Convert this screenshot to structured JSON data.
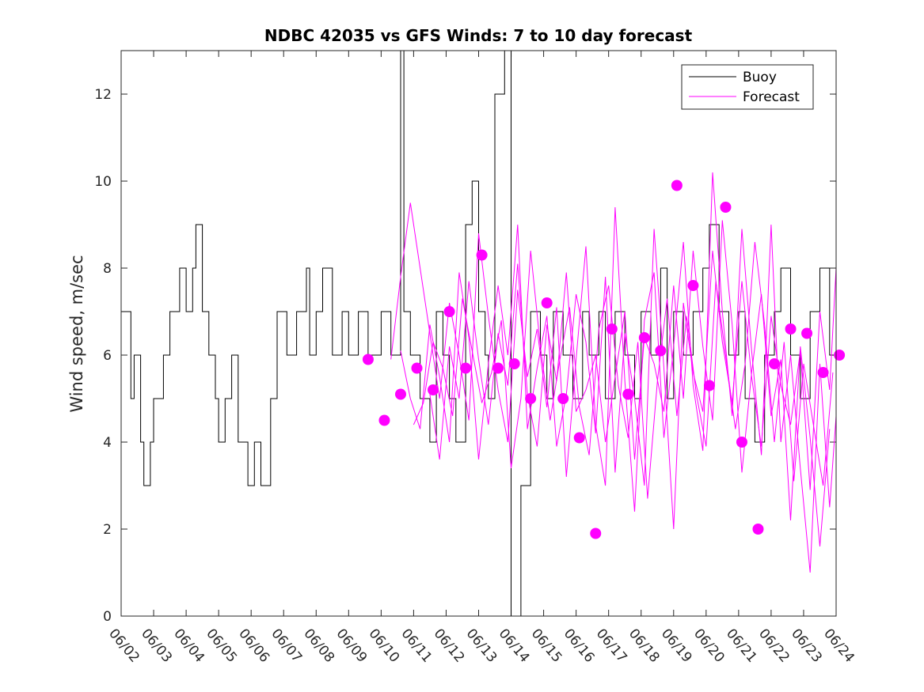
{
  "chart_data": {
    "type": "line",
    "title": "NDBC 42035 vs GFS Winds: 7 to 10 day forecast",
    "xlabel": "",
    "ylabel": "Wind speed, m/sec",
    "xlim": [
      "06/02",
      "06/24"
    ],
    "ylim": [
      0,
      13
    ],
    "x_tick_labels": [
      "06/02",
      "06/03",
      "06/04",
      "06/05",
      "06/06",
      "06/07",
      "06/08",
      "06/09",
      "06/10",
      "06/11",
      "06/12",
      "06/13",
      "06/14",
      "06/15",
      "06/16",
      "06/17",
      "06/18",
      "06/19",
      "06/20",
      "06/21",
      "06/22",
      "06/23",
      "06/24"
    ],
    "y_ticks": [
      0,
      2,
      4,
      6,
      8,
      10,
      12
    ],
    "legend": {
      "position": "top-right",
      "entries": [
        "Buoy",
        "Forecast"
      ]
    },
    "colors": {
      "buoy": "#000000",
      "forecast": "#ff00ff"
    },
    "series": [
      {
        "name": "Buoy",
        "style": "step",
        "x": [
          0.0,
          0.3,
          0.4,
          0.6,
          0.7,
          0.9,
          1.0,
          1.3,
          1.5,
          1.8,
          2.0,
          2.2,
          2.3,
          2.5,
          2.7,
          2.9,
          3.0,
          3.2,
          3.4,
          3.6,
          3.9,
          4.1,
          4.3,
          4.6,
          4.8,
          5.1,
          5.4,
          5.7,
          5.8,
          6.0,
          6.2,
          6.5,
          6.8,
          7.0,
          7.3,
          7.6,
          8.0,
          8.3,
          8.6,
          8.7,
          8.9,
          9.2,
          9.5,
          9.7,
          9.9,
          10.1,
          10.3,
          10.6,
          10.8,
          11.0,
          11.2,
          11.3,
          11.5,
          11.8,
          12.0,
          12.3,
          12.6,
          12.9,
          13.1,
          13.3,
          13.6,
          13.9,
          14.2,
          14.4,
          14.7,
          14.9,
          15.2,
          15.5,
          15.8,
          16.0,
          16.3,
          16.6,
          16.8,
          17.0,
          17.3,
          17.6,
          17.9,
          18.1,
          18.4,
          18.7,
          19.0,
          19.2,
          19.5,
          19.8,
          20.1,
          20.3,
          20.6,
          20.9,
          21.2,
          21.5,
          21.8,
          22.0
        ],
        "y": [
          7,
          5,
          6,
          4,
          3,
          4,
          5,
          6,
          7,
          8,
          7,
          8,
          9,
          7,
          6,
          5,
          4,
          5,
          6,
          4,
          3,
          4,
          3,
          5,
          7,
          6,
          7,
          8,
          6,
          7,
          8,
          6,
          7,
          6,
          7,
          6,
          7,
          6,
          13,
          7,
          6,
          5,
          4,
          7,
          6,
          5,
          4,
          9,
          10,
          7,
          6,
          5,
          12,
          13,
          0,
          3,
          7,
          6,
          5,
          7,
          6,
          5,
          7,
          6,
          7,
          5,
          7,
          6,
          5,
          7,
          6,
          8,
          5,
          7,
          6,
          7,
          8,
          9,
          7,
          6,
          7,
          5,
          4,
          6,
          7,
          8,
          6,
          5,
          7,
          8,
          6,
          7
        ]
      },
      {
        "name": "Forecast",
        "x": [
          8.3,
          8.6,
          8.9,
          9.2,
          9.5,
          9.8,
          10.1,
          10.4,
          10.7,
          11.0,
          11.3,
          11.6,
          11.9,
          12.2,
          12.5,
          12.8,
          13.1,
          13.4,
          13.7,
          14.0,
          14.3,
          14.6,
          14.9,
          15.2,
          15.5,
          15.8,
          16.1,
          16.4,
          16.7,
          17.0,
          17.3,
          17.6,
          17.9,
          18.2,
          18.5,
          18.8,
          19.1,
          19.4,
          19.7,
          20.0,
          20.3,
          20.6,
          20.9,
          21.2,
          21.5,
          21.8,
          22.0
        ],
        "y": [
          5.9,
          7.8,
          9.5,
          8.0,
          6.5,
          5.0,
          7.2,
          6.0,
          4.5,
          8.8,
          6.9,
          5.2,
          4.0,
          7.5,
          5.5,
          6.6,
          4.8,
          7.1,
          3.2,
          5.9,
          8.5,
          4.4,
          3.0,
          9.4,
          5.4,
          2.4,
          6.8,
          7.9,
          4.1,
          6.2,
          8.6,
          5.3,
          3.8,
          10.2,
          7.0,
          4.6,
          8.9,
          6.1,
          3.7,
          9.0,
          4.0,
          6.0,
          3.4,
          1.0,
          5.8,
          2.5,
          4.6
        ]
      },
      {
        "name": "Forecast",
        "x": [
          8.6,
          8.9,
          9.2,
          9.5,
          9.8,
          10.1,
          10.4,
          10.7,
          11.0,
          11.3,
          11.6,
          11.9,
          12.2,
          12.5,
          12.8,
          13.1,
          13.4,
          13.7,
          14.0,
          14.3,
          14.6,
          14.9,
          15.2,
          15.5,
          15.8,
          16.1,
          16.4,
          16.7,
          17.0,
          17.3,
          17.6,
          17.9,
          18.2,
          18.5,
          18.8,
          19.1,
          19.4,
          19.7,
          20.0,
          20.3,
          20.6,
          20.9,
          21.2,
          21.5,
          21.8,
          22.0
        ],
        "y": [
          6.1,
          5.0,
          4.3,
          6.7,
          5.5,
          4.0,
          7.9,
          6.4,
          3.6,
          5.8,
          7.6,
          6.0,
          9.0,
          4.3,
          5.7,
          6.9,
          3.9,
          5.1,
          7.4,
          6.3,
          4.2,
          7.8,
          3.3,
          6.5,
          5.0,
          3.0,
          8.9,
          5.7,
          2.0,
          7.2,
          5.6,
          4.7,
          8.4,
          6.3,
          4.9,
          7.7,
          5.5,
          3.9,
          6.9,
          5.3,
          4.4,
          6.1,
          2.9,
          7.0,
          5.2,
          8.0
        ]
      },
      {
        "name": "Forecast",
        "x": [
          9.0,
          9.3,
          9.6,
          9.9,
          10.2,
          10.5,
          10.8,
          11.1,
          11.4,
          11.7,
          12.0,
          12.3,
          12.6,
          12.9,
          13.2,
          13.5,
          13.8,
          14.1,
          14.4,
          14.7,
          15.0,
          15.3,
          15.6,
          15.9,
          16.2,
          16.5,
          16.8,
          17.1,
          17.4,
          17.7,
          18.0,
          18.3,
          18.6,
          18.9,
          19.2,
          19.5,
          19.8,
          20.1,
          20.4,
          20.7,
          21.0,
          21.3,
          21.6,
          21.9
        ],
        "y": [
          4.4,
          4.9,
          6.3,
          5.7,
          4.6,
          7.3,
          6.1,
          4.9,
          5.6,
          6.8,
          3.4,
          5.0,
          8.4,
          6.2,
          4.5,
          5.9,
          7.1,
          4.8,
          3.7,
          6.6,
          7.6,
          5.3,
          4.1,
          6.3,
          2.7,
          5.4,
          7.3,
          4.6,
          6.9,
          5.1,
          3.9,
          7.7,
          6.0,
          4.3,
          5.8,
          8.6,
          6.7,
          4.0,
          6.3,
          3.1,
          5.8,
          4.4,
          3.0,
          5.6
        ]
      },
      {
        "name": "Forecast",
        "x": [
          9.5,
          9.8,
          10.1,
          10.4,
          10.7,
          11.0,
          11.3,
          11.6,
          11.9,
          12.2,
          12.5,
          12.8,
          13.1,
          13.4,
          13.7,
          14.0,
          14.3,
          14.6,
          14.9,
          15.2,
          15.5,
          15.8,
          16.1,
          16.4,
          16.7,
          17.0,
          17.3,
          17.6,
          17.9,
          18.2,
          18.5,
          18.8,
          19.1,
          19.4,
          19.7,
          20.0,
          20.3,
          20.6,
          20.9,
          21.2,
          21.5,
          21.8
        ],
        "y": [
          5.1,
          3.6,
          6.2,
          5.0,
          7.7,
          5.9,
          4.4,
          6.5,
          5.3,
          8.1,
          5.1,
          3.9,
          6.7,
          5.4,
          7.9,
          4.7,
          5.2,
          6.0,
          4.0,
          5.5,
          7.0,
          3.6,
          6.4,
          5.8,
          4.7,
          7.6,
          5.0,
          8.4,
          6.2,
          4.5,
          9.1,
          6.7,
          3.3,
          5.6,
          7.4,
          4.6,
          5.9,
          2.2,
          6.2,
          4.1,
          1.6,
          4.3
        ]
      }
    ],
    "markers": {
      "name": "Forecast",
      "x": [
        7.6,
        8.1,
        8.6,
        9.1,
        9.6,
        10.1,
        10.6,
        11.1,
        11.6,
        12.1,
        12.6,
        13.1,
        13.6,
        14.1,
        14.6,
        15.1,
        15.6,
        16.1,
        16.6,
        17.1,
        17.6,
        18.1,
        18.6,
        19.1,
        19.6,
        20.1,
        20.6,
        21.1,
        21.6,
        22.1
      ],
      "y": [
        5.9,
        4.5,
        5.1,
        5.7,
        5.2,
        7.0,
        5.7,
        8.3,
        5.7,
        5.8,
        5.0,
        7.2,
        5.0,
        4.1,
        1.9,
        6.6,
        5.1,
        6.4,
        6.1,
        9.9,
        7.6,
        5.3,
        9.4,
        4.0,
        2.0,
        5.8,
        6.6,
        6.5,
        5.6,
        6.0
      ]
    }
  }
}
